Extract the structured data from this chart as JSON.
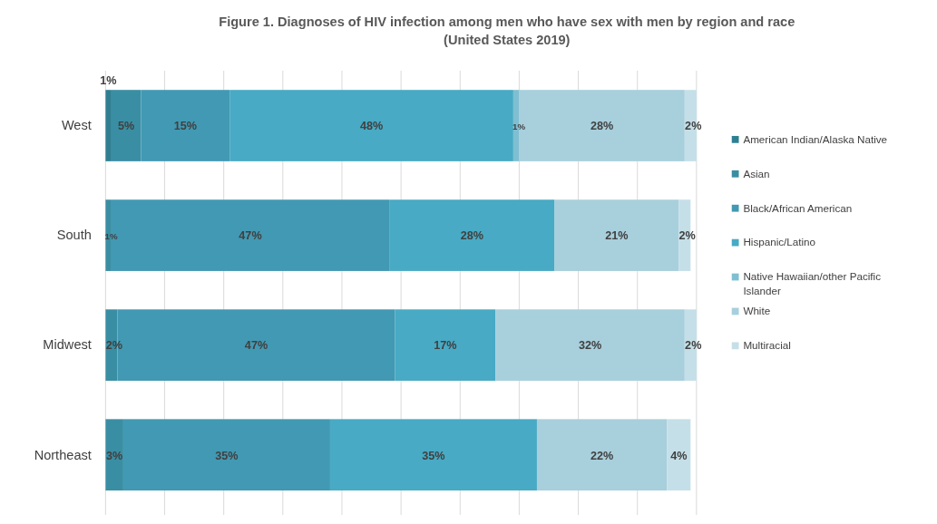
{
  "chart_data": {
    "type": "bar",
    "orientation": "horizontal",
    "stacked": true,
    "title": "Figure 1. Diagnoses of HIV infection among men who have sex with men by region and race (United States 2019)",
    "categories": [
      "West",
      "South",
      "Midwest",
      "Northeast"
    ],
    "xlim": [
      0,
      100
    ],
    "xticks": [
      {
        "value": 0,
        "label": null
      },
      {
        "value": 10,
        "label": null
      },
      {
        "value": 20,
        "label": null
      },
      {
        "value": 30,
        "label": null
      },
      {
        "value": 40,
        "label": null
      },
      {
        "value": 50,
        "label": null
      },
      {
        "value": 60,
        "label": null
      },
      {
        "value": 70,
        "label": null
      },
      {
        "value": 80,
        "label": null
      },
      {
        "value": 90,
        "label": null
      },
      {
        "value": 100,
        "label": null
      }
    ],
    "grid": "x",
    "tick_labels": "y",
    "legend": "right",
    "series": [
      {
        "name": "American Indian/Alaska Native",
        "color": "#2f7f92",
        "values": [
          1,
          null,
          null,
          null
        ],
        "value_labels": [
          "1%",
          null,
          null,
          null
        ]
      },
      {
        "name": "Asian",
        "color": "#3a8ea3",
        "values": [
          5,
          1,
          2,
          3
        ],
        "value_labels": [
          "5%",
          "1%",
          "2%",
          "3%"
        ]
      },
      {
        "name": "Black/African American",
        "color": "#4299b3",
        "values": [
          15,
          47,
          47,
          35
        ],
        "value_labels": [
          "15%",
          "47%",
          "47%",
          "35%"
        ]
      },
      {
        "name": "Hispanic/Latino",
        "color": "#48aac4",
        "values": [
          48,
          28,
          17,
          35
        ],
        "value_labels": [
          "48%",
          "28%",
          "17%",
          "35%"
        ]
      },
      {
        "name": "Native Hawaiian/other Pacific Islander",
        "color": "#7fbfd1",
        "values": [
          1,
          null,
          null,
          null
        ],
        "value_labels": [
          "1%",
          null,
          null,
          null
        ]
      },
      {
        "name": "White",
        "color": "#a8cfdc",
        "values": [
          28,
          21,
          32,
          22
        ],
        "value_labels": [
          "28%",
          "21%",
          "32%",
          "22%"
        ]
      },
      {
        "name": "Multiracial",
        "color": "#c5dfe8",
        "values": [
          2,
          2,
          2,
          4
        ],
        "value_labels": [
          "2%",
          "2%",
          "2%",
          "4%"
        ]
      }
    ]
  }
}
